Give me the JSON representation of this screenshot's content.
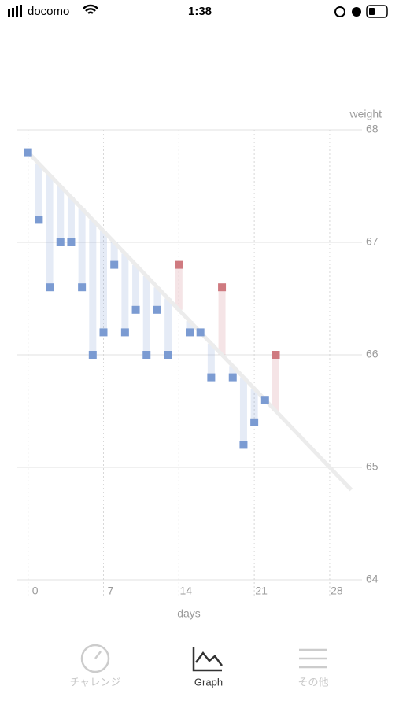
{
  "status_bar": {
    "carrier": "docomo",
    "time": "1:38"
  },
  "chart_data": {
    "type": "scatter",
    "x_label": "days",
    "y_label": "weight",
    "x": [
      0,
      1,
      2,
      3,
      4,
      5,
      6,
      7,
      8,
      9,
      10,
      11,
      12,
      13,
      14,
      15,
      16,
      17,
      18,
      19,
      20,
      21,
      22,
      23
    ],
    "series": [
      {
        "values": [
          67.8,
          67.2,
          66.6,
          67.0,
          67.0,
          66.6,
          66.0,
          66.2,
          66.8,
          66.2,
          66.4,
          66.0,
          66.4,
          66.0,
          66.8,
          66.2,
          66.2,
          65.8,
          66.6,
          65.8,
          65.2,
          65.4,
          65.6,
          66.0
        ],
        "color": "#7b9bd2",
        "above_color": "#cf7a80"
      }
    ],
    "target": {
      "x": [
        0,
        30
      ],
      "values": [
        67.8,
        64.8
      ],
      "color": "#ececec"
    },
    "xlim": [
      -1,
      31
    ],
    "ylim": [
      64,
      68
    ],
    "xticks": [
      0,
      7,
      14,
      21,
      28
    ],
    "yticks": [
      64,
      65,
      66,
      67,
      68
    ],
    "grid": true
  },
  "tab_bar": {
    "items": [
      "チャレンジ",
      "Graph",
      "その他"
    ],
    "selected": 1
  }
}
